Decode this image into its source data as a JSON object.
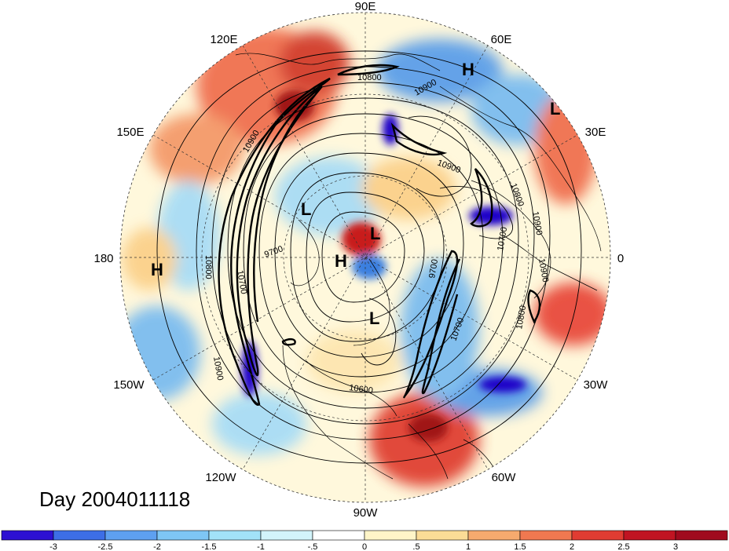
{
  "map": {
    "projection": "north-polar-stereographic",
    "longitude_labels": [
      "90E",
      "60E",
      "30E",
      "0",
      "30W",
      "60W",
      "90W",
      "120W",
      "150W",
      "180",
      "150E",
      "120E"
    ],
    "day_label": "Day 2004011118",
    "contour_labels": [
      "10800",
      "10900",
      "10900",
      "10800",
      "10700",
      "10900",
      "10900",
      "10800",
      "10700",
      "9700",
      "9700",
      "10600",
      "10900",
      "10800",
      "10700",
      "10900"
    ],
    "pressure_systems": [
      {
        "type": "H",
        "name": "high-60e"
      },
      {
        "type": "L",
        "name": "low-30e"
      },
      {
        "type": "H",
        "name": "high-180"
      },
      {
        "type": "L",
        "name": "low-siberia"
      },
      {
        "type": "L",
        "name": "low-pole"
      },
      {
        "type": "H",
        "name": "high-pole"
      },
      {
        "type": "L",
        "name": "low-canada"
      }
    ],
    "shading_colors": {
      "strong_negative": "#1a00c8",
      "moderate_negative": "#3b7fe0",
      "weak_negative": "#a8dcf5",
      "neutral": "#fffde8",
      "weak_positive": "#fbd08a",
      "moderate_positive": "#f07050",
      "strong_positive": "#c81e1e"
    }
  },
  "colorbar": {
    "tick_labels": [
      "-3",
      "-2.5",
      "-2",
      "-1.5",
      "-1",
      "-.5",
      "0",
      ".5",
      "1",
      "1.5",
      "2",
      "2.5",
      "3"
    ],
    "colors": [
      "#2d10d2",
      "#3d6ee6",
      "#5ea0f0",
      "#7ec6f5",
      "#a2e2f8",
      "#d2f4fb",
      "#ffffff",
      "#fff5c8",
      "#fbdc96",
      "#f6aa6e",
      "#f07850",
      "#e03c32",
      "#c01422",
      "#a00a1e"
    ]
  }
}
